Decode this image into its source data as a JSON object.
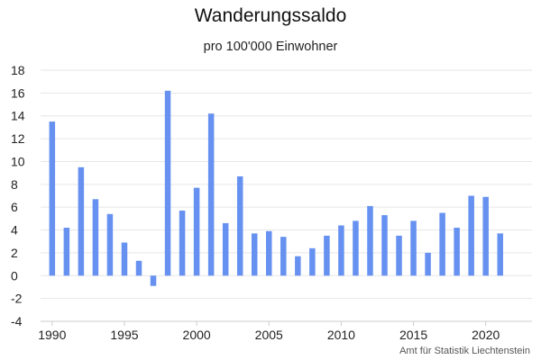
{
  "chart_data": {
    "type": "bar",
    "title": "Wanderungssaldo",
    "subtitle": "pro 100'000 Einwohner",
    "source": "Amt für Statistik Liechtenstein",
    "x": [
      1990,
      1991,
      1992,
      1993,
      1994,
      1995,
      1996,
      1997,
      1998,
      1999,
      2000,
      2001,
      2002,
      2003,
      2004,
      2005,
      2006,
      2007,
      2008,
      2009,
      2010,
      2011,
      2012,
      2013,
      2014,
      2015,
      2016,
      2017,
      2018,
      2019,
      2020,
      2021
    ],
    "values": [
      13.5,
      4.2,
      9.5,
      6.7,
      5.4,
      2.9,
      1.3,
      -0.9,
      16.2,
      5.7,
      7.7,
      14.2,
      4.6,
      8.7,
      3.7,
      3.9,
      3.4,
      1.7,
      2.4,
      3.5,
      4.4,
      4.8,
      6.1,
      5.3,
      3.5,
      4.8,
      2.0,
      5.5,
      4.2,
      7.0,
      6.9,
      3.7
    ],
    "ylim": [
      -4,
      18
    ],
    "yticks": [
      -4,
      -2,
      0,
      2,
      4,
      6,
      8,
      10,
      12,
      14,
      16,
      18
    ],
    "xticks": [
      1990,
      1995,
      2000,
      2005,
      2010,
      2015,
      2020
    ],
    "grid": true,
    "bar_color": "#6691f0",
    "grid_color": "#e6e6e6"
  }
}
